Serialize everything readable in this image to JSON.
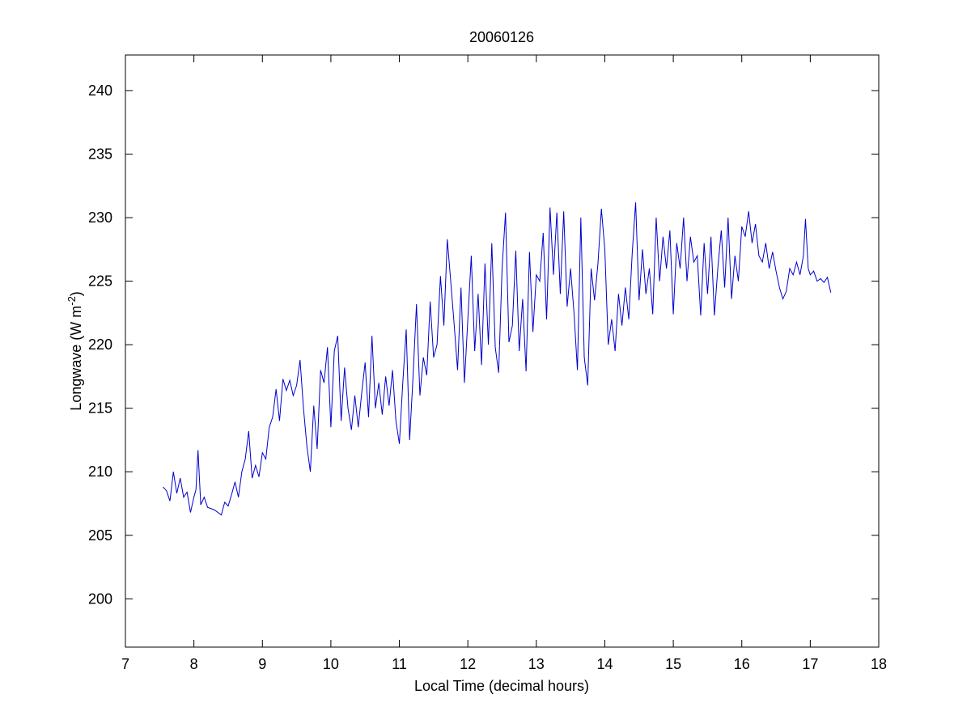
{
  "chart_data": {
    "type": "line",
    "title": "20060126",
    "xlabel": "Local Time (decimal hours)",
    "ylabel": {
      "text": "Longwave (W m",
      "superscript": "-2",
      "suffix": ")"
    },
    "xlim": [
      7,
      18
    ],
    "xticks": [
      7,
      8,
      9,
      10,
      11,
      12,
      13,
      14,
      15,
      16,
      17,
      18
    ],
    "ylim": [
      196.2,
      242.8
    ],
    "yticks": [
      200,
      205,
      210,
      215,
      220,
      225,
      230,
      235,
      240
    ],
    "grid": false,
    "series": [
      {
        "color": "#0000cc",
        "x": [
          7.55,
          7.6,
          7.65,
          7.7,
          7.75,
          7.8,
          7.85,
          7.9,
          7.95,
          8.0,
          8.03,
          8.06,
          8.1,
          8.15,
          8.2,
          8.3,
          8.4,
          8.45,
          8.5,
          8.55,
          8.6,
          8.65,
          8.7,
          8.75,
          8.8,
          8.85,
          8.9,
          8.95,
          9.0,
          9.05,
          9.1,
          9.15,
          9.2,
          9.25,
          9.3,
          9.35,
          9.4,
          9.45,
          9.5,
          9.55,
          9.6,
          9.65,
          9.7,
          9.75,
          9.8,
          9.85,
          9.9,
          9.95,
          10.0,
          10.05,
          10.1,
          10.15,
          10.2,
          10.25,
          10.3,
          10.35,
          10.4,
          10.45,
          10.5,
          10.55,
          10.6,
          10.65,
          10.7,
          10.75,
          10.8,
          10.85,
          10.9,
          10.95,
          11.0,
          11.05,
          11.1,
          11.15,
          11.2,
          11.25,
          11.3,
          11.35,
          11.4,
          11.45,
          11.5,
          11.55,
          11.6,
          11.65,
          11.7,
          11.75,
          11.8,
          11.85,
          11.9,
          11.95,
          12.0,
          12.05,
          12.1,
          12.15,
          12.2,
          12.25,
          12.3,
          12.35,
          12.4,
          12.45,
          12.5,
          12.55,
          12.6,
          12.65,
          12.7,
          12.75,
          12.8,
          12.85,
          12.9,
          12.95,
          13.0,
          13.05,
          13.1,
          13.15,
          13.2,
          13.25,
          13.3,
          13.35,
          13.4,
          13.45,
          13.5,
          13.55,
          13.6,
          13.65,
          13.7,
          13.75,
          13.8,
          13.85,
          13.9,
          13.95,
          14.0,
          14.05,
          14.1,
          14.15,
          14.2,
          14.25,
          14.3,
          14.35,
          14.4,
          14.45,
          14.5,
          14.55,
          14.6,
          14.65,
          14.7,
          14.75,
          14.8,
          14.85,
          14.9,
          14.95,
          15.0,
          15.05,
          15.1,
          15.15,
          15.2,
          15.25,
          15.3,
          15.35,
          15.4,
          15.45,
          15.5,
          15.55,
          15.6,
          15.65,
          15.7,
          15.75,
          15.8,
          15.85,
          15.9,
          15.95,
          16.0,
          16.05,
          16.1,
          16.15,
          16.2,
          16.25,
          16.3,
          16.35,
          16.4,
          16.45,
          16.5,
          16.55,
          16.6,
          16.65,
          16.7,
          16.75,
          16.8,
          16.85,
          16.9,
          16.93,
          16.97,
          17.0,
          17.05,
          17.1,
          17.15,
          17.2,
          17.25,
          17.3
        ],
        "values": [
          208.8,
          208.5,
          207.7,
          210.0,
          208.3,
          209.5,
          208.0,
          208.4,
          206.8,
          208.0,
          208.6,
          211.7,
          207.4,
          208.0,
          207.2,
          207.0,
          206.6,
          207.6,
          207.3,
          208.2,
          209.2,
          208.0,
          210.0,
          211.0,
          213.2,
          209.5,
          210.5,
          209.6,
          211.5,
          211.0,
          213.5,
          214.3,
          216.5,
          214.0,
          217.3,
          216.4,
          217.2,
          216.0,
          216.8,
          218.8,
          215.0,
          212.0,
          210.0,
          215.2,
          211.8,
          218.0,
          217.0,
          219.8,
          213.5,
          219.5,
          220.7,
          214.0,
          218.2,
          215.0,
          213.3,
          216.0,
          213.5,
          216.2,
          218.6,
          214.3,
          220.7,
          215.0,
          217.0,
          214.5,
          217.5,
          215.2,
          218.0,
          214.0,
          212.2,
          217.0,
          221.2,
          212.5,
          217.5,
          223.2,
          216.0,
          219.0,
          217.6,
          223.4,
          219.0,
          220.0,
          225.4,
          221.5,
          228.3,
          225.0,
          221.6,
          218.0,
          224.5,
          217.0,
          222.0,
          227.0,
          219.5,
          224.0,
          218.4,
          226.4,
          220.0,
          228.0,
          219.8,
          217.8,
          226.0,
          230.4,
          220.2,
          221.5,
          227.4,
          219.5,
          223.6,
          217.9,
          227.3,
          221.0,
          225.5,
          225.0,
          228.8,
          222.0,
          230.8,
          225.5,
          230.4,
          224.0,
          230.5,
          223.0,
          226.0,
          222.5,
          218.0,
          230.0,
          219.0,
          216.8,
          226.0,
          223.5,
          226.4,
          230.7,
          227.5,
          220.0,
          222.0,
          219.5,
          224.0,
          221.5,
          224.5,
          222.0,
          227.2,
          231.2,
          223.5,
          227.5,
          224.0,
          226.0,
          222.4,
          230.0,
          225.0,
          228.5,
          226.0,
          229.0,
          222.4,
          228.0,
          226.0,
          230.0,
          225.0,
          228.5,
          226.5,
          227.0,
          222.3,
          228.0,
          224.0,
          228.5,
          222.3,
          226.0,
          229.0,
          224.5,
          230.0,
          223.6,
          227.0,
          225.0,
          229.3,
          228.5,
          230.5,
          228.0,
          229.5,
          227.0,
          226.5,
          228.0,
          226.0,
          227.3,
          225.8,
          224.5,
          223.6,
          224.2,
          226.0,
          225.5,
          226.5,
          225.5,
          227.0,
          229.9,
          226.0,
          225.5,
          225.8,
          225.0,
          225.2,
          224.9,
          225.3,
          224.1
        ]
      }
    ]
  }
}
